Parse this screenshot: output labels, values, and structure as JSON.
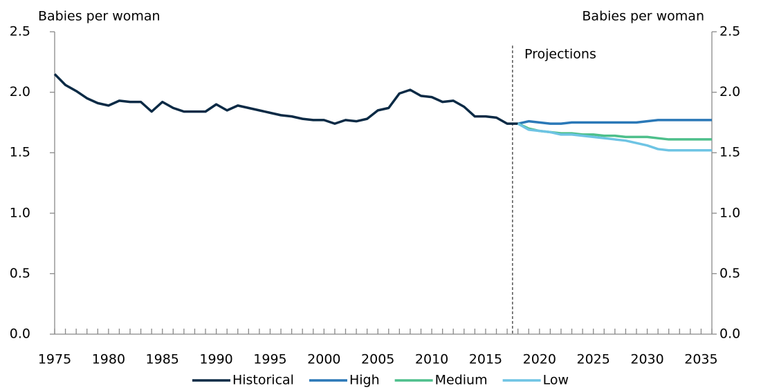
{
  "chart_data": {
    "type": "line",
    "y_label": "Babies per woman",
    "y2_label": "Babies per woman",
    "annotation": {
      "text": "Projections",
      "x": 2017.5
    },
    "x": [
      1975,
      1976,
      1977,
      1978,
      1979,
      1980,
      1981,
      1982,
      1983,
      1984,
      1985,
      1986,
      1987,
      1988,
      1989,
      1990,
      1991,
      1992,
      1993,
      1994,
      1995,
      1996,
      1997,
      1998,
      1999,
      2000,
      2001,
      2002,
      2003,
      2004,
      2005,
      2006,
      2007,
      2008,
      2009,
      2010,
      2011,
      2012,
      2013,
      2014,
      2015,
      2016,
      2017,
      2018,
      2019,
      2020,
      2021,
      2022,
      2023,
      2024,
      2025,
      2026,
      2027,
      2028,
      2029,
      2030,
      2031,
      2032,
      2033,
      2034,
      2035,
      2036
    ],
    "xlim": [
      1975,
      2036
    ],
    "xticks": [
      1975,
      1980,
      1985,
      1990,
      1995,
      2000,
      2005,
      2010,
      2015,
      2020,
      2025,
      2030,
      2035
    ],
    "ylim": [
      0,
      2.5
    ],
    "yticks": [
      {
        "value": 0,
        "label": "0.0"
      },
      0.5,
      {
        "value": 1,
        "label": "1.0"
      },
      1.5,
      {
        "value": 2,
        "label": "2.0"
      },
      2.5
    ],
    "y2lim": [
      0,
      2.5
    ],
    "y2ticks": [
      {
        "value": 0,
        "label": "0.0"
      },
      0.5,
      {
        "value": 1,
        "label": "1.0"
      },
      1.5,
      {
        "value": 2,
        "label": "2.0"
      },
      2.5
    ],
    "grid": false,
    "legend": "bottom",
    "series": [
      {
        "name": "Historical",
        "color": "#0b2a45",
        "values": [
          2.15,
          2.06,
          2.01,
          1.95,
          1.91,
          1.89,
          1.93,
          1.92,
          1.92,
          1.84,
          1.92,
          1.87,
          1.84,
          1.84,
          1.84,
          1.9,
          1.85,
          1.89,
          1.87,
          1.85,
          1.83,
          1.81,
          1.8,
          1.78,
          1.77,
          1.77,
          1.74,
          1.77,
          1.76,
          1.78,
          1.85,
          1.87,
          1.99,
          2.02,
          1.97,
          1.96,
          1.92,
          1.93,
          1.88,
          1.8,
          1.8,
          1.79,
          1.74,
          1.74,
          null,
          null,
          null,
          null,
          null,
          null,
          null,
          null,
          null,
          null,
          null,
          null,
          null,
          null,
          null,
          null,
          null,
          null
        ]
      },
      {
        "name": "High",
        "color": "#2a78b7",
        "values": [
          null,
          null,
          null,
          null,
          null,
          null,
          null,
          null,
          null,
          null,
          null,
          null,
          null,
          null,
          null,
          null,
          null,
          null,
          null,
          null,
          null,
          null,
          null,
          null,
          null,
          null,
          null,
          null,
          null,
          null,
          null,
          null,
          null,
          null,
          null,
          null,
          null,
          null,
          null,
          null,
          null,
          null,
          null,
          1.74,
          1.76,
          1.75,
          1.74,
          1.74,
          1.75,
          1.75,
          1.75,
          1.75,
          1.75,
          1.75,
          1.75,
          1.76,
          1.77,
          1.77,
          1.77,
          1.77,
          1.77,
          1.77
        ]
      },
      {
        "name": "Medium",
        "color": "#4dbf8b",
        "values": [
          null,
          null,
          null,
          null,
          null,
          null,
          null,
          null,
          null,
          null,
          null,
          null,
          null,
          null,
          null,
          null,
          null,
          null,
          null,
          null,
          null,
          null,
          null,
          null,
          null,
          null,
          null,
          null,
          null,
          null,
          null,
          null,
          null,
          null,
          null,
          null,
          null,
          null,
          null,
          null,
          null,
          null,
          null,
          1.74,
          1.7,
          1.68,
          1.67,
          1.66,
          1.66,
          1.65,
          1.65,
          1.64,
          1.64,
          1.63,
          1.63,
          1.63,
          1.62,
          1.61,
          1.61,
          1.61,
          1.61,
          1.61
        ]
      },
      {
        "name": "Low",
        "color": "#6ec4e4",
        "values": [
          null,
          null,
          null,
          null,
          null,
          null,
          null,
          null,
          null,
          null,
          null,
          null,
          null,
          null,
          null,
          null,
          null,
          null,
          null,
          null,
          null,
          null,
          null,
          null,
          null,
          null,
          null,
          null,
          null,
          null,
          null,
          null,
          null,
          null,
          null,
          null,
          null,
          null,
          null,
          null,
          null,
          null,
          null,
          1.74,
          1.69,
          1.68,
          1.67,
          1.65,
          1.65,
          1.64,
          1.63,
          1.62,
          1.61,
          1.6,
          1.58,
          1.56,
          1.53,
          1.52,
          1.52,
          1.52,
          1.52,
          1.52
        ]
      }
    ]
  }
}
